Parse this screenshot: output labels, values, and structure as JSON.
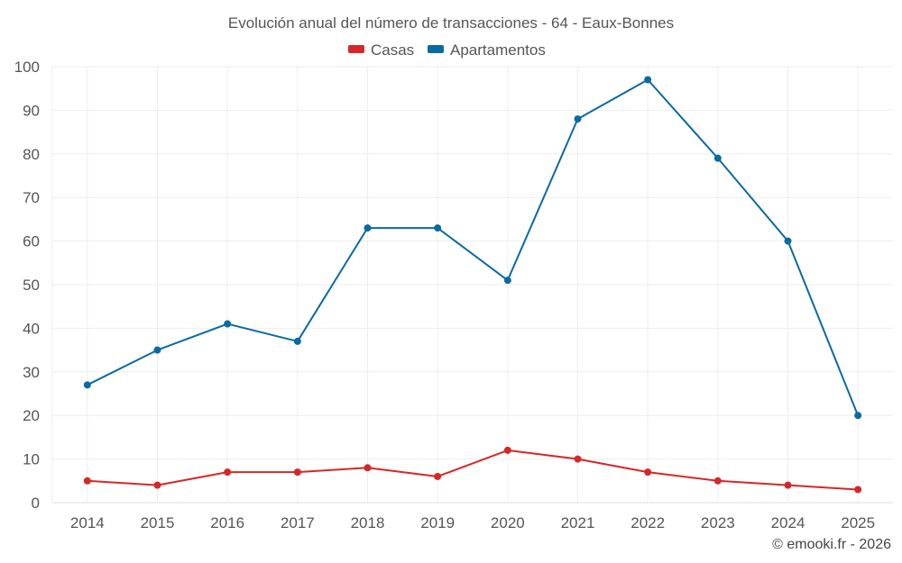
{
  "chart_data": {
    "type": "line",
    "title": "Evolución anual del número de transacciones - 64 - Eaux-Bonnes",
    "categories": [
      "2014",
      "2015",
      "2016",
      "2017",
      "2018",
      "2019",
      "2020",
      "2021",
      "2022",
      "2023",
      "2024",
      "2025"
    ],
    "series": [
      {
        "name": "Casas",
        "color": "#d62728",
        "values": [
          5,
          4,
          7,
          7,
          8,
          6,
          12,
          10,
          7,
          5,
          4,
          3
        ]
      },
      {
        "name": "Apartamentos",
        "color": "#0a6aa1",
        "values": [
          27,
          35,
          41,
          37,
          63,
          63,
          51,
          88,
          97,
          79,
          60,
          20
        ]
      }
    ],
    "ylim": [
      0,
      100
    ],
    "yticks": [
      0,
      10,
      20,
      30,
      40,
      50,
      60,
      70,
      80,
      90,
      100
    ],
    "xlabel": "",
    "ylabel": "",
    "grid": true,
    "legend_position": "top-center"
  },
  "credit": "© emooki.fr - 2026"
}
